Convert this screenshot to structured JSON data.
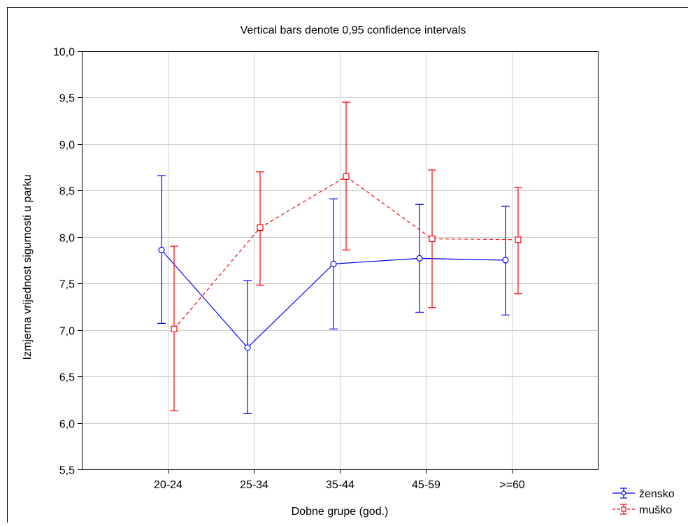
{
  "chart_data": {
    "type": "line",
    "title": "Vertical bars denote 0,95 confidence intervals",
    "xlabel": "Dobne grupe (god.)",
    "ylabel": "Izmjerna vrijednost sigurnosti u parku",
    "ylim": [
      5.5,
      10.0
    ],
    "yticks": [
      5.5,
      6.0,
      6.5,
      7.0,
      7.5,
      8.0,
      8.5,
      9.0,
      9.5,
      10.0
    ],
    "ytick_labels": [
      "5,5",
      "6,0",
      "6,5",
      "7,0",
      "7,5",
      "8,0",
      "8,5",
      "9,0",
      "9,5",
      "10,0"
    ],
    "categories": [
      "20-24",
      "25-34",
      "35-44",
      "45-59",
      ">=60"
    ],
    "grid": true,
    "legend_position": "bottom-right",
    "series": [
      {
        "name": "žensko",
        "color": "#0000ff",
        "line_style": "solid",
        "marker": "circle",
        "values": [
          7.86,
          6.81,
          7.71,
          7.77,
          7.75
        ],
        "ci_low": [
          7.07,
          6.1,
          7.01,
          7.19,
          7.16
        ],
        "ci_high": [
          8.66,
          7.53,
          8.41,
          8.35,
          8.33
        ]
      },
      {
        "name": "muško",
        "color": "#ff0000",
        "line_style": "dashed",
        "marker": "square",
        "values": [
          7.01,
          8.1,
          8.65,
          7.98,
          7.97
        ],
        "ci_low": [
          6.13,
          7.48,
          7.86,
          7.24,
          7.39
        ],
        "ci_high": [
          7.9,
          8.7,
          9.45,
          8.72,
          8.53
        ]
      }
    ]
  }
}
